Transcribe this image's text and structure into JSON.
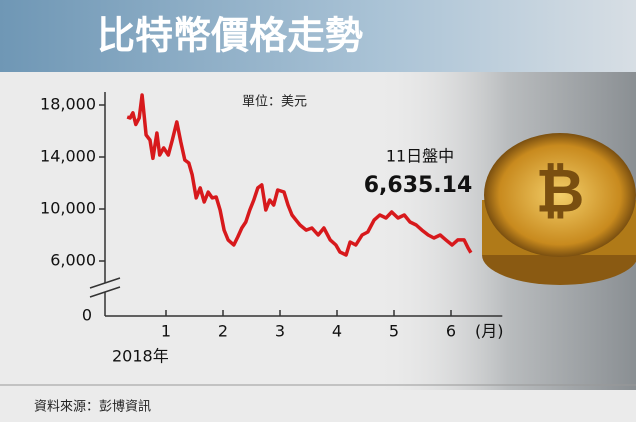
{
  "chart_data": {
    "type": "line",
    "title": "比特幣價格走勢",
    "unit_label": "單位：美元",
    "x_label": "2018年",
    "x_unit": "(月)",
    "source": "資料來源：彭博資訊",
    "annotations": [
      "11日盤中",
      "6,635.14"
    ],
    "color": "#d7191c",
    "xlim": [
      0,
      6.9
    ],
    "xticks": [
      1,
      2,
      3,
      4,
      5,
      6
    ],
    "ylim": [
      3000,
      19000
    ],
    "yticks": [
      {
        "value": 6000,
        "label": "6,000"
      },
      {
        "value": 10000,
        "label": "10,000"
      },
      {
        "value": 14000,
        "label": "14,000"
      },
      {
        "value": 18000,
        "label": "18,000"
      }
    ],
    "y_break_tick": 0,
    "x": [
      0.32,
      0.37,
      0.42,
      0.47,
      0.53,
      0.58,
      0.65,
      0.72,
      0.77,
      0.84,
      0.89,
      0.96,
      1.04,
      1.11,
      1.19,
      1.26,
      1.33,
      1.4,
      1.46,
      1.53,
      1.6,
      1.67,
      1.74,
      1.81,
      1.88,
      1.95,
      2.02,
      2.09,
      2.19,
      2.26,
      2.33,
      2.4,
      2.47,
      2.54,
      2.61,
      2.68,
      2.75,
      2.82,
      2.89,
      2.96,
      3.07,
      3.14,
      3.21,
      3.28,
      3.35,
      3.46,
      3.56,
      3.67,
      3.77,
      3.88,
      3.98,
      4.05,
      4.16,
      4.23,
      4.33,
      4.44,
      4.54,
      4.65,
      4.75,
      4.86,
      4.96,
      5.07,
      5.18,
      5.28,
      5.39,
      5.49,
      5.6,
      5.7,
      5.81,
      5.91,
      6.02,
      6.12,
      6.23,
      6.3,
      6.35
    ],
    "values": [
      17080,
      17000,
      17400,
      16500,
      17000,
      18770,
      15700,
      15300,
      13900,
      15850,
      14150,
      14700,
      14150,
      15300,
      16700,
      15150,
      13770,
      13540,
      12620,
      10850,
      11620,
      10540,
      11300,
      10850,
      10920,
      9920,
      8380,
      7620,
      7230,
      7850,
      8540,
      9000,
      9920,
      10690,
      11620,
      11850,
      9920,
      10690,
      10310,
      11460,
      11310,
      10310,
      9540,
      9150,
      8770,
      8380,
      8540,
      8000,
      8540,
      7620,
      7230,
      6690,
      6460,
      7460,
      7230,
      8000,
      8230,
      9150,
      9540,
      9310,
      9770,
      9310,
      9540,
      9000,
      8770,
      8380,
      8000,
      7770,
      8000,
      7620,
      7230,
      7620,
      7620,
      7000,
      6640
    ]
  }
}
